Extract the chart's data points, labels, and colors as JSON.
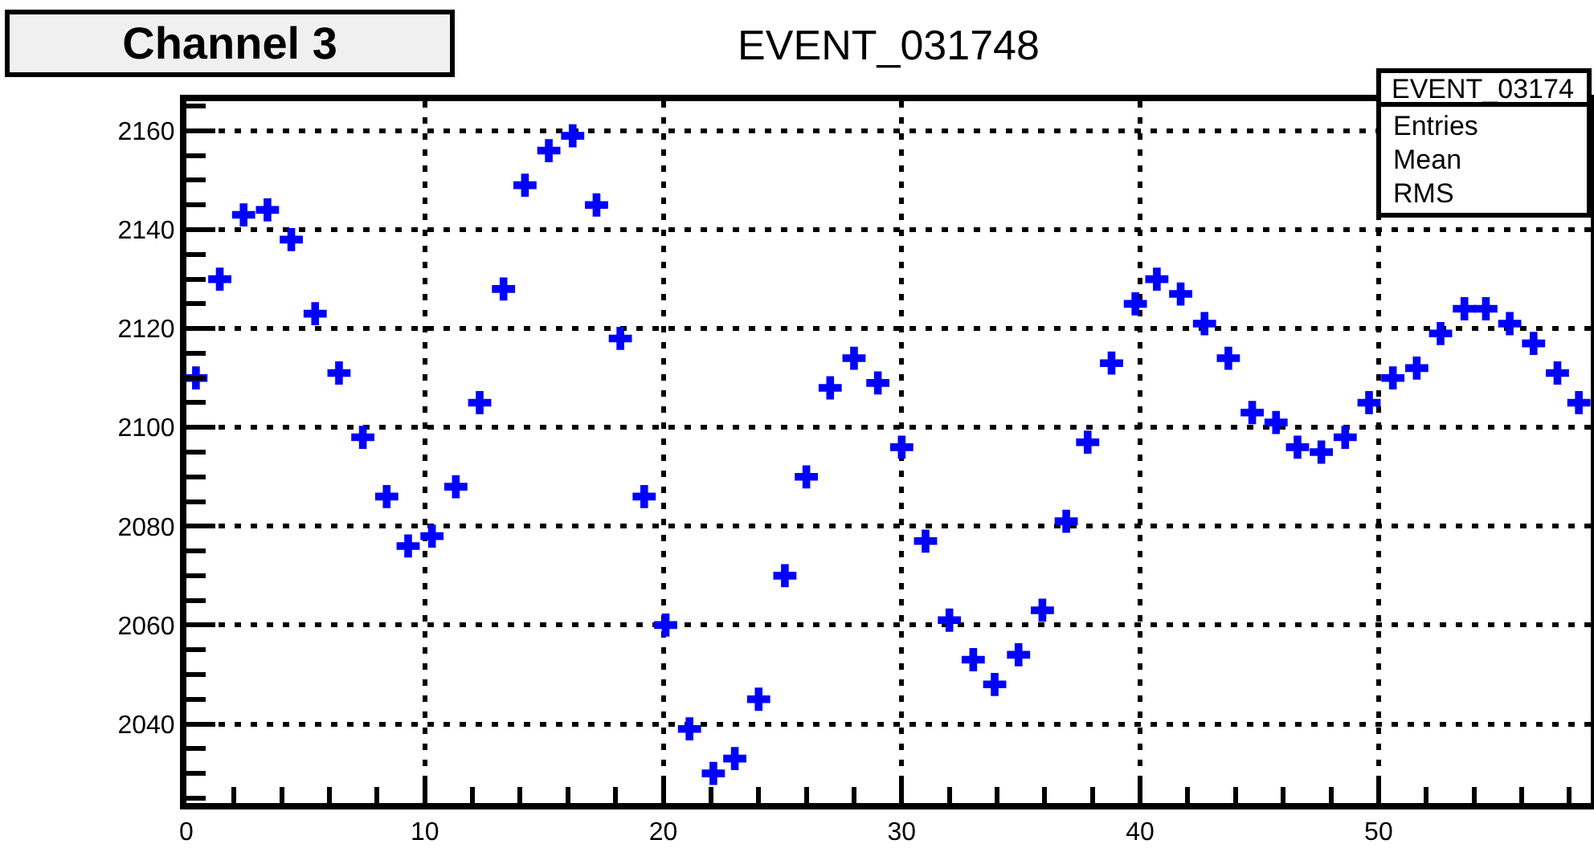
{
  "chart_data": {
    "type": "scatter",
    "title": "EVENT_031748",
    "annotations": [
      "Channel 3",
      "EVENT_03174",
      "Entries",
      "Mean",
      "RMS"
    ],
    "x": [
      0.4,
      1.4,
      2.4,
      3.4,
      4.4,
      5.4,
      6.4,
      7.4,
      8.4,
      9.3,
      10.3,
      11.3,
      12.3,
      13.3,
      14.2,
      15.2,
      16.2,
      17.2,
      18.2,
      19.2,
      20.1,
      21.1,
      22.1,
      23.0,
      24.0,
      25.1,
      26.0,
      27.0,
      28.0,
      29.0,
      30.0,
      31.0,
      32.0,
      33.0,
      33.9,
      34.9,
      35.9,
      36.9,
      37.8,
      38.8,
      39.8,
      40.7,
      41.7,
      42.7,
      43.7,
      44.7,
      45.7,
      46.6,
      47.6,
      48.6,
      49.6,
      50.6,
      51.6,
      52.6,
      53.6,
      54.5,
      55.5,
      56.5,
      57.5,
      58.4
    ],
    "series": [
      {
        "color": "#0000ff",
        "values": [
          2110,
          2130,
          2143,
          2144,
          2138,
          2123,
          2111,
          2098,
          2086,
          2076,
          2078,
          2088,
          2105,
          2128,
          2149,
          2156,
          2159,
          2145,
          2118,
          2086,
          2060,
          2039,
          2030,
          2033,
          2045,
          2070,
          2090,
          2108,
          2114,
          2109,
          2096,
          2077,
          2061,
          2053,
          2048,
          2054,
          2063,
          2081,
          2097,
          2113,
          2125,
          2130,
          2127,
          2121,
          2114,
          2103,
          2101,
          2096,
          2095,
          2098,
          2105,
          2110,
          2112,
          2119,
          2124,
          2124,
          2121,
          2117,
          2111,
          2105
        ]
      }
    ],
    "xlim": [
      0,
      58.9
    ],
    "xticks": [
      0,
      {
        "value": 2,
        "label": null
      },
      {
        "value": 4,
        "label": null
      },
      {
        "value": 6,
        "label": null
      },
      {
        "value": 8,
        "label": null
      },
      10,
      {
        "value": 12,
        "label": null
      },
      {
        "value": 14,
        "label": null
      },
      {
        "value": 16,
        "label": null
      },
      {
        "value": 18,
        "label": null
      },
      20,
      {
        "value": 22,
        "label": null
      },
      {
        "value": 24,
        "label": null
      },
      {
        "value": 26,
        "label": null
      },
      {
        "value": 28,
        "label": null
      },
      30,
      {
        "value": 32,
        "label": null
      },
      {
        "value": 34,
        "label": null
      },
      {
        "value": 36,
        "label": null
      },
      {
        "value": 38,
        "label": null
      },
      40,
      {
        "value": 42,
        "label": null
      },
      {
        "value": 44,
        "label": null
      },
      {
        "value": 46,
        "label": null
      },
      {
        "value": 48,
        "label": null
      },
      50,
      {
        "value": 52,
        "label": null
      },
      {
        "value": 54,
        "label": null
      },
      {
        "value": 56,
        "label": null
      },
      {
        "value": 58,
        "label": null
      }
    ],
    "ylim": [
      2024,
      2166
    ],
    "yticks": [
      {
        "value": 2025,
        "label": null
      },
      {
        "value": 2030,
        "label": null
      },
      {
        "value": 2035,
        "label": null
      },
      2040,
      {
        "value": 2045,
        "label": null
      },
      {
        "value": 2050,
        "label": null
      },
      {
        "value": 2055,
        "label": null
      },
      2060,
      {
        "value": 2065,
        "label": null
      },
      {
        "value": 2070,
        "label": null
      },
      {
        "value": 2075,
        "label": null
      },
      2080,
      {
        "value": 2085,
        "label": null
      },
      {
        "value": 2090,
        "label": null
      },
      {
        "value": 2095,
        "label": null
      },
      2100,
      {
        "value": 2105,
        "label": null
      },
      {
        "value": 2110,
        "label": null
      },
      {
        "value": 2115,
        "label": null
      },
      2120,
      {
        "value": 2125,
        "label": null
      },
      {
        "value": 2130,
        "label": null
      },
      {
        "value": 2135,
        "label": null
      },
      2140,
      {
        "value": 2145,
        "label": null
      },
      {
        "value": 2150,
        "label": null
      },
      {
        "value": 2155,
        "label": null
      },
      2160,
      {
        "value": 2165,
        "label": null
      }
    ],
    "grid": true,
    "marker": "cross"
  }
}
